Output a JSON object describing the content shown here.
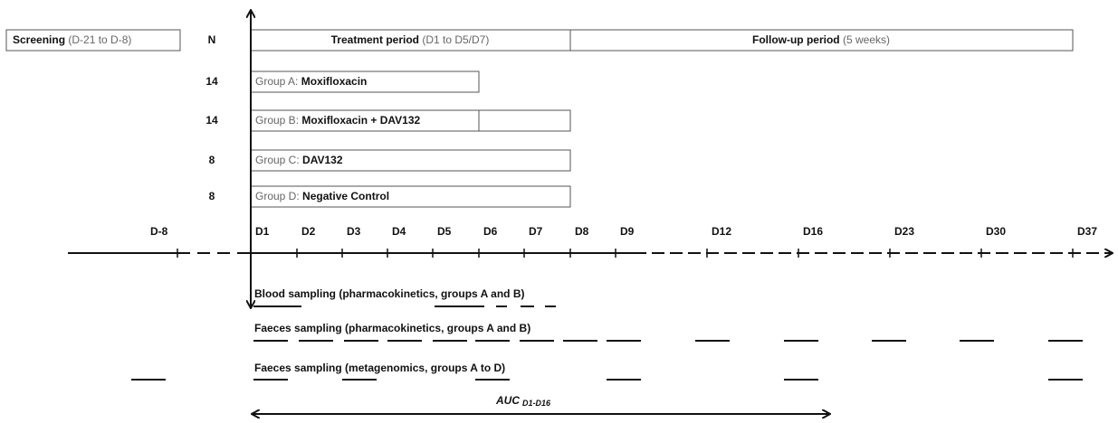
{
  "header": {
    "screening": {
      "bold": "Screening",
      "rest": " (D-21 to D-8)"
    },
    "n": "N",
    "treatment": {
      "bold": "Treatment period",
      "rest": " (D1 to D5/D7)"
    },
    "followup": {
      "bold": "Follow-up period",
      "rest": " (5 weeks)"
    }
  },
  "groups": [
    {
      "n": "14",
      "prefix": "Group A: ",
      "name": "Moxifloxacin"
    },
    {
      "n": "14",
      "prefix": "Group B: ",
      "name": "Moxifloxacin + DAV132"
    },
    {
      "n": "8",
      "prefix": "Group C: ",
      "name": "DAV132"
    },
    {
      "n": "8",
      "prefix": "Group D: ",
      "name": "Negative Control"
    }
  ],
  "days": [
    "D-8",
    "D1",
    "D2",
    "D3",
    "D4",
    "D5",
    "D6",
    "D7",
    "D8",
    "D9",
    "D12",
    "D16",
    "D23",
    "D30",
    "D37"
  ],
  "sampling": [
    "Blood sampling (pharmacokinetics, groups A and B)",
    "Faeces sampling (pharmacokinetics, groups A and B)",
    "Faeces sampling (metagenomics, groups A to D)"
  ],
  "auc": {
    "main": "AUC",
    "sub": "D1-D16"
  }
}
